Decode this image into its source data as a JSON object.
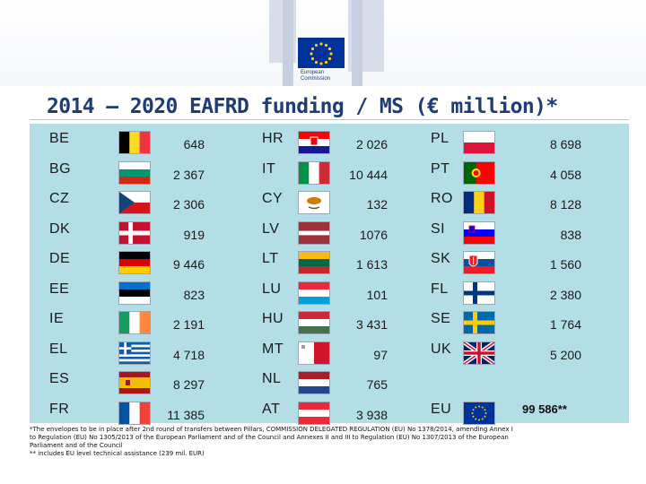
{
  "header": {
    "logo_line1": "European",
    "logo_line2": "Commission",
    "colors": {
      "eu_blue": "#003399",
      "eu_yellow": "#ffcc00"
    }
  },
  "title": "2014 – 2020 EAFRD funding / MS (€ million)*",
  "columns": [
    {
      "rows": [
        {
          "code": "BE",
          "value": "648",
          "flag": "flag-be-icon"
        },
        {
          "code": "BG",
          "value": "2 367",
          "flag": "flag-bg-icon"
        },
        {
          "code": "CZ",
          "value": "2 306",
          "flag": "flag-cz-icon"
        },
        {
          "code": "DK",
          "value": "919",
          "flag": "flag-dk-icon"
        },
        {
          "code": "DE",
          "value": "9 446",
          "flag": "flag-de-icon"
        },
        {
          "code": "EE",
          "value": "823",
          "flag": "flag-ee-icon"
        },
        {
          "code": "IE",
          "value": "2 191",
          "flag": "flag-ie-icon"
        },
        {
          "code": "EL",
          "value": "4 718",
          "flag": "flag-el-icon"
        },
        {
          "code": "ES",
          "value": "8 297",
          "flag": "flag-es-icon"
        },
        {
          "code": "FR",
          "value": "11 385",
          "flag": "flag-fr-icon"
        }
      ]
    },
    {
      "rows": [
        {
          "code": "HR",
          "value": "2 026",
          "flag": "flag-hr-icon"
        },
        {
          "code": "IT",
          "value": "10 444",
          "flag": "flag-it-icon"
        },
        {
          "code": "CY",
          "value": "132",
          "flag": "flag-cy-icon"
        },
        {
          "code": "LV",
          "value": "1076",
          "flag": "flag-lv-icon"
        },
        {
          "code": "LT",
          "value": "1 613",
          "flag": "flag-lt-icon"
        },
        {
          "code": "LU",
          "value": "101",
          "flag": "flag-lu-icon"
        },
        {
          "code": "HU",
          "value": "3 431",
          "flag": "flag-hu-icon"
        },
        {
          "code": "MT",
          "value": "97",
          "flag": "flag-mt-icon"
        },
        {
          "code": "NL",
          "value": "765",
          "flag": "flag-nl-icon"
        },
        {
          "code": "AT",
          "value": "3 938",
          "flag": "flag-at-icon"
        }
      ]
    },
    {
      "rows": [
        {
          "code": "PL",
          "value": "8 698",
          "flag": "flag-pl-icon"
        },
        {
          "code": "PT",
          "value": "4 058",
          "flag": "flag-pt-icon"
        },
        {
          "code": "RO",
          "value": "8 128",
          "flag": "flag-ro-icon"
        },
        {
          "code": "SI",
          "value": "838",
          "flag": "flag-si-icon"
        },
        {
          "code": "SK",
          "value": "1 560",
          "flag": "flag-sk-icon"
        },
        {
          "code": "FL",
          "value": "2 380",
          "flag": "flag-fi-icon"
        },
        {
          "code": "SE",
          "value": "1 764",
          "flag": "flag-se-icon"
        },
        {
          "code": "UK",
          "value": "5 200",
          "flag": "flag-uk-icon"
        },
        {
          "code": "",
          "value": "",
          "flag": ""
        },
        {
          "code": "EU",
          "value": "",
          "flag": "flag-eu-icon"
        }
      ]
    }
  ],
  "total": "99 586**",
  "footnotes": {
    "line1": "*The envelopes to be in place after 2nd round of transfers between Pillars, COMMISSION DELEGATED REGULATION (EU) No 1378/2014, amending Annex I",
    "line2": "to Regulation (EU) No 1305/2013 of the European Parliament and of the Council and Annexes II and III to Regulation (EU) No 1307/2013 of the European",
    "line3": "Parliament and of the Council",
    "line4": "** includes EU level technical assistance (239 mil. EUR)"
  }
}
